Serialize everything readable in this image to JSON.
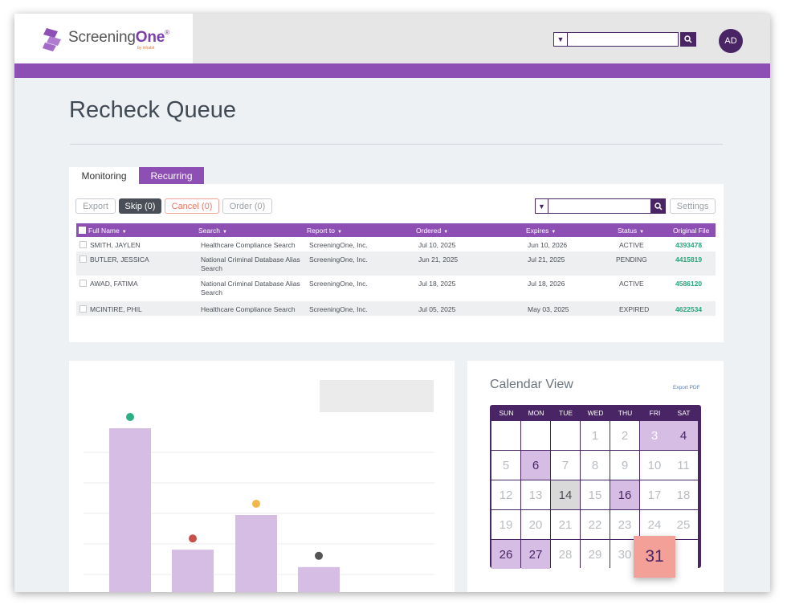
{
  "brand": {
    "name_plain": "Screening",
    "name_bold": "One",
    "reg": "®",
    "tagline": "by inhabit"
  },
  "header": {
    "search_placeholder": "",
    "avatar_initials": "AD"
  },
  "page": {
    "title": "Recheck Queue"
  },
  "tabs": [
    {
      "label": "Monitoring"
    },
    {
      "label": "Recurring"
    }
  ],
  "toolbar": {
    "export_label": "Export",
    "skip_label": "Skip (0)",
    "cancel_label": "Cancel (0)",
    "order_label": "Order (0)",
    "settings_label": "Settings"
  },
  "table": {
    "columns": [
      "Full Name",
      "Search",
      "Report to",
      "Ordered",
      "Expires",
      "Status",
      "Original File"
    ],
    "rows": [
      {
        "name": "SMITH, JAYLEN",
        "search": "Healthcare Compliance Search",
        "search2": "",
        "report_to": "ScreeningOne, Inc.",
        "ordered": "Jul 10, 2025",
        "expires": "Jun 10, 2026",
        "status": "ACTIVE",
        "file": "4393478"
      },
      {
        "name": "BUTLER, JESSICA",
        "search": "National Criminal Database Alias",
        "search2": "Search",
        "report_to": "ScreeningOne, Inc.",
        "ordered": "Jun 21, 2025",
        "expires": "Jul 21, 2025",
        "status": "PENDING",
        "file": "4415819"
      },
      {
        "name": "AWAD, FATIMA",
        "search": "National Criminal Database Alias",
        "search2": "Search",
        "report_to": "ScreeningOne, Inc.",
        "ordered": "Jul 18, 2025",
        "expires": "Jul 18, 2026",
        "status": "ACTIVE",
        "file": "4586120"
      },
      {
        "name": "MCINTIRE, PHIL",
        "search": "Healthcare Compliance Search",
        "search2": "",
        "report_to": "ScreeningOne, Inc.",
        "ordered": "Jul 05, 2025",
        "expires": "May 03, 2025",
        "status": "EXPIRED",
        "file": "4622534"
      }
    ]
  },
  "chart_data": {
    "type": "bar",
    "categories": [
      "",
      "",
      "",
      ""
    ],
    "values": [
      100,
      30,
      50,
      20
    ],
    "marker_colors": [
      "#2bb082",
      "#c9504a",
      "#f2b84b",
      "#555555"
    ],
    "bar_color": "#d5bde4",
    "title": "",
    "xlabel": "",
    "ylabel": ""
  },
  "calendar": {
    "title": "Calendar View",
    "export_label": "Export PDF",
    "weekdays": [
      "SUN",
      "MON",
      "TUE",
      "WED",
      "THU",
      "FRI",
      "SAT"
    ],
    "weeks": [
      [
        "",
        "",
        "",
        "1",
        "2",
        "3",
        "4"
      ],
      [
        "5",
        "6",
        "7",
        "8",
        "9",
        "10",
        "11"
      ],
      [
        "12",
        "13",
        "14",
        "15",
        "16",
        "17",
        "18"
      ],
      [
        "19",
        "20",
        "21",
        "22",
        "23",
        "24",
        "25"
      ],
      [
        "26",
        "27",
        "28",
        "29",
        "30",
        "31",
        ""
      ]
    ],
    "highlighted_days": [
      "4",
      "6",
      "16",
      "26",
      "27"
    ],
    "muted_highlight_days": [
      "3"
    ],
    "gray_days": [
      "14"
    ],
    "today": "31"
  }
}
